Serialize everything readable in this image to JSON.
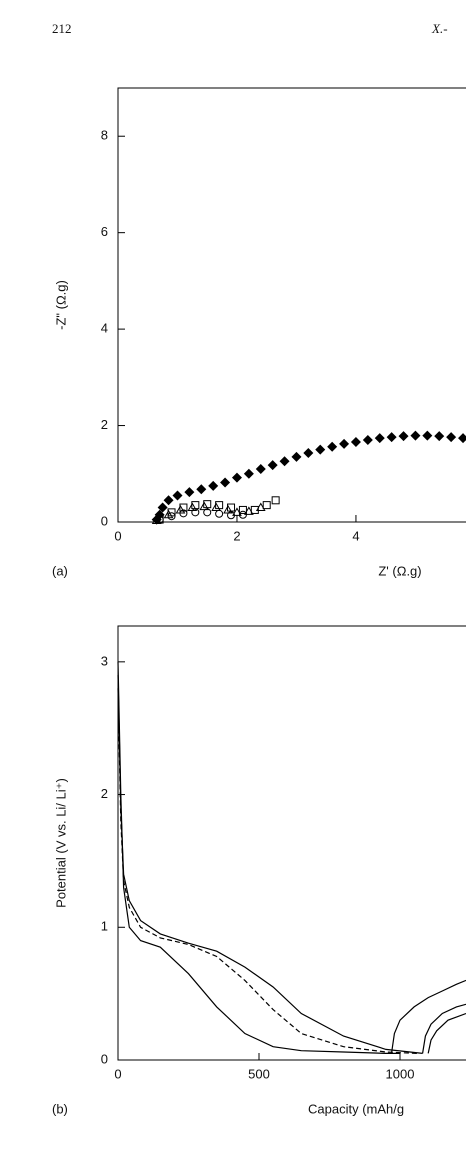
{
  "page": {
    "number": "212",
    "running_head": "X.-"
  },
  "chart_data": [
    {
      "type": "scatter",
      "panel_label": "(a)",
      "x_label": "Z' (Ω.g)",
      "y_label": "-Z\" (Ω.g)",
      "xlim": [
        0,
        5.85
      ],
      "xticks": [
        0,
        2,
        4
      ],
      "ylim": [
        0,
        9
      ],
      "yticks": [
        0,
        2,
        4,
        6,
        8
      ],
      "series": [
        {
          "marker": "diamond-filled",
          "color": "#000000",
          "x": [
            0.65,
            0.7,
            0.75,
            0.85,
            1.0,
            1.2,
            1.4,
            1.6,
            1.8,
            2.0,
            2.2,
            2.4,
            2.6,
            2.8,
            3.0,
            3.2,
            3.4,
            3.6,
            3.8,
            4.0,
            4.2,
            4.4,
            4.6,
            4.8,
            5.0,
            5.2,
            5.4,
            5.6,
            5.8
          ],
          "values": [
            0.05,
            0.15,
            0.3,
            0.45,
            0.55,
            0.62,
            0.68,
            0.75,
            0.82,
            0.92,
            1.0,
            1.1,
            1.18,
            1.26,
            1.35,
            1.43,
            1.5,
            1.56,
            1.62,
            1.66,
            1.7,
            1.74,
            1.76,
            1.78,
            1.79,
            1.79,
            1.78,
            1.76,
            1.74
          ]
        },
        {
          "marker": "square-open",
          "color": "#000000",
          "x": [
            0.7,
            0.9,
            1.1,
            1.3,
            1.5,
            1.7,
            1.9,
            2.1,
            2.3,
            2.5,
            2.65
          ],
          "values": [
            0.05,
            0.2,
            0.3,
            0.35,
            0.37,
            0.35,
            0.3,
            0.25,
            0.25,
            0.35,
            0.45
          ]
        },
        {
          "marker": "triangle-open",
          "color": "#000000",
          "x": [
            0.65,
            0.85,
            1.05,
            1.25,
            1.45,
            1.65,
            1.85,
            2.0,
            2.2,
            2.4
          ],
          "values": [
            0.03,
            0.15,
            0.25,
            0.3,
            0.32,
            0.3,
            0.25,
            0.2,
            0.22,
            0.3
          ]
        },
        {
          "marker": "circle-open",
          "color": "#000000",
          "x": [
            0.7,
            0.9,
            1.1,
            1.3,
            1.5,
            1.7,
            1.9,
            2.1
          ],
          "values": [
            0.05,
            0.12,
            0.18,
            0.2,
            0.2,
            0.17,
            0.14,
            0.15
          ]
        }
      ]
    },
    {
      "type": "line",
      "panel_label": "(b)",
      "x_label": "Capacity (mAh/g",
      "y_label": "Potential (V vs. Li/ Li⁺)",
      "xlim": [
        0,
        1234
      ],
      "xticks": [
        0,
        500,
        1000
      ],
      "ylim": [
        0,
        3.27
      ],
      "yticks": [
        0,
        1,
        2,
        3
      ],
      "series": [
        {
          "color": "#000000",
          "dash": "solid",
          "x": [
            0,
            10,
            20,
            40,
            80,
            150,
            250,
            350,
            450,
            550,
            650,
            800,
            950,
            1000
          ],
          "values": [
            3.0,
            2.0,
            1.3,
            1.0,
            0.9,
            0.85,
            0.65,
            0.4,
            0.2,
            0.1,
            0.07,
            0.06,
            0.05,
            0.05
          ]
        },
        {
          "color": "#000000",
          "dash": "dashed",
          "x": [
            0,
            10,
            20,
            40,
            80,
            150,
            250,
            350,
            450,
            550,
            650,
            800,
            950,
            1060
          ],
          "values": [
            2.8,
            1.8,
            1.35,
            1.15,
            1.0,
            0.92,
            0.87,
            0.78,
            0.6,
            0.38,
            0.2,
            0.1,
            0.06,
            0.05
          ]
        },
        {
          "color": "#000000",
          "dash": "solid",
          "x": [
            0,
            10,
            20,
            40,
            80,
            150,
            250,
            350,
            450,
            550,
            650,
            800,
            950,
            1080
          ],
          "values": [
            2.9,
            1.9,
            1.4,
            1.2,
            1.05,
            0.95,
            0.88,
            0.82,
            0.7,
            0.55,
            0.35,
            0.18,
            0.08,
            0.05
          ]
        },
        {
          "color": "#000000",
          "dash": "solid",
          "x": [
            970,
            980,
            1000,
            1050,
            1100,
            1150,
            1200,
            1234
          ],
          "values": [
            0.05,
            0.2,
            0.3,
            0.4,
            0.47,
            0.52,
            0.57,
            0.6
          ]
        },
        {
          "color": "#000000",
          "dash": "solid",
          "x": [
            1080,
            1090,
            1110,
            1150,
            1200,
            1234
          ],
          "values": [
            0.05,
            0.18,
            0.27,
            0.35,
            0.4,
            0.42
          ]
        },
        {
          "color": "#000000",
          "dash": "solid",
          "x": [
            1100,
            1110,
            1130,
            1170,
            1234
          ],
          "values": [
            0.05,
            0.15,
            0.22,
            0.3,
            0.35
          ]
        }
      ]
    }
  ]
}
